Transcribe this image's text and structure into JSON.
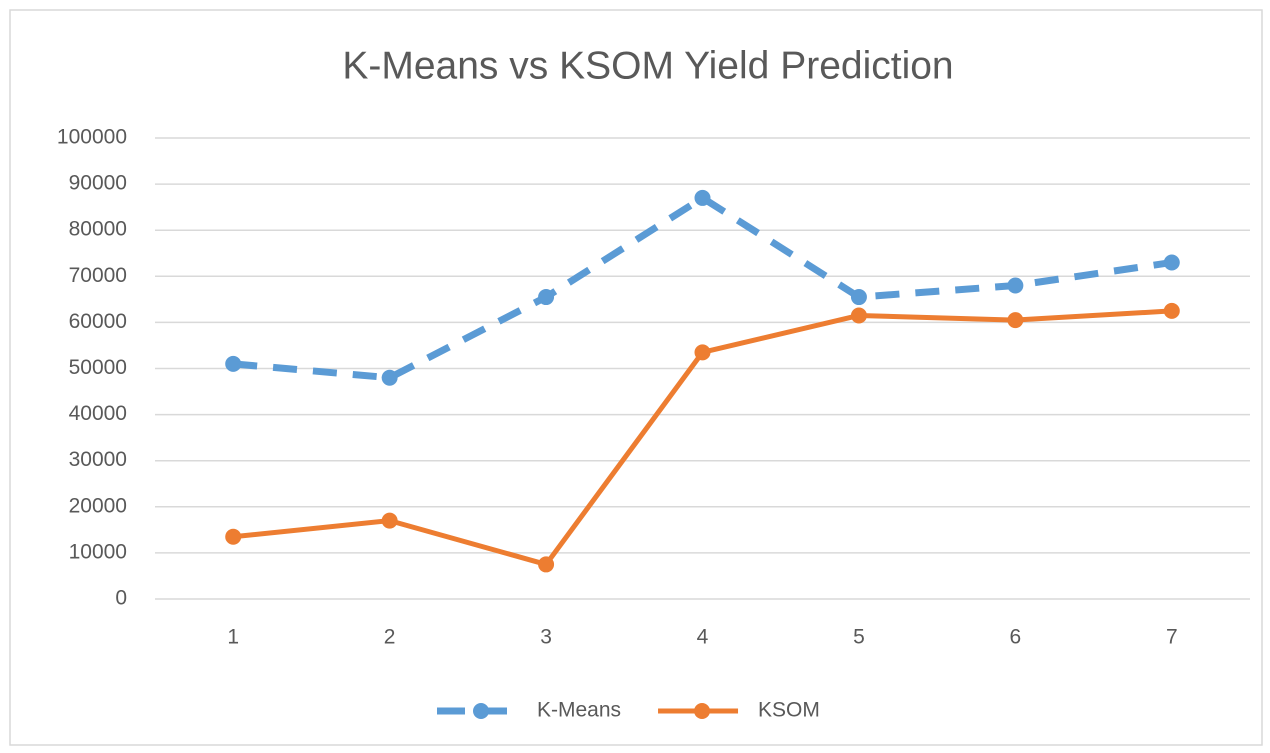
{
  "chart_data": {
    "type": "line",
    "title": "K-Means vs KSOM Yield Prediction",
    "categories": [
      "1",
      "2",
      "3",
      "4",
      "5",
      "6",
      "7"
    ],
    "series": [
      {
        "name": "K-Means",
        "color": "#5b9bd5",
        "dashed": true,
        "values": [
          51000,
          48000,
          65500,
          87000,
          65500,
          68000,
          73000
        ]
      },
      {
        "name": "KSOM",
        "color": "#ed7d31",
        "dashed": false,
        "values": [
          13500,
          17000,
          7500,
          53500,
          61500,
          60500,
          62500
        ]
      }
    ],
    "ylim": [
      0,
      100000
    ],
    "yticks": [
      0,
      10000,
      20000,
      30000,
      40000,
      50000,
      60000,
      70000,
      80000,
      90000,
      100000
    ],
    "grid": true,
    "legend": "bottom"
  }
}
